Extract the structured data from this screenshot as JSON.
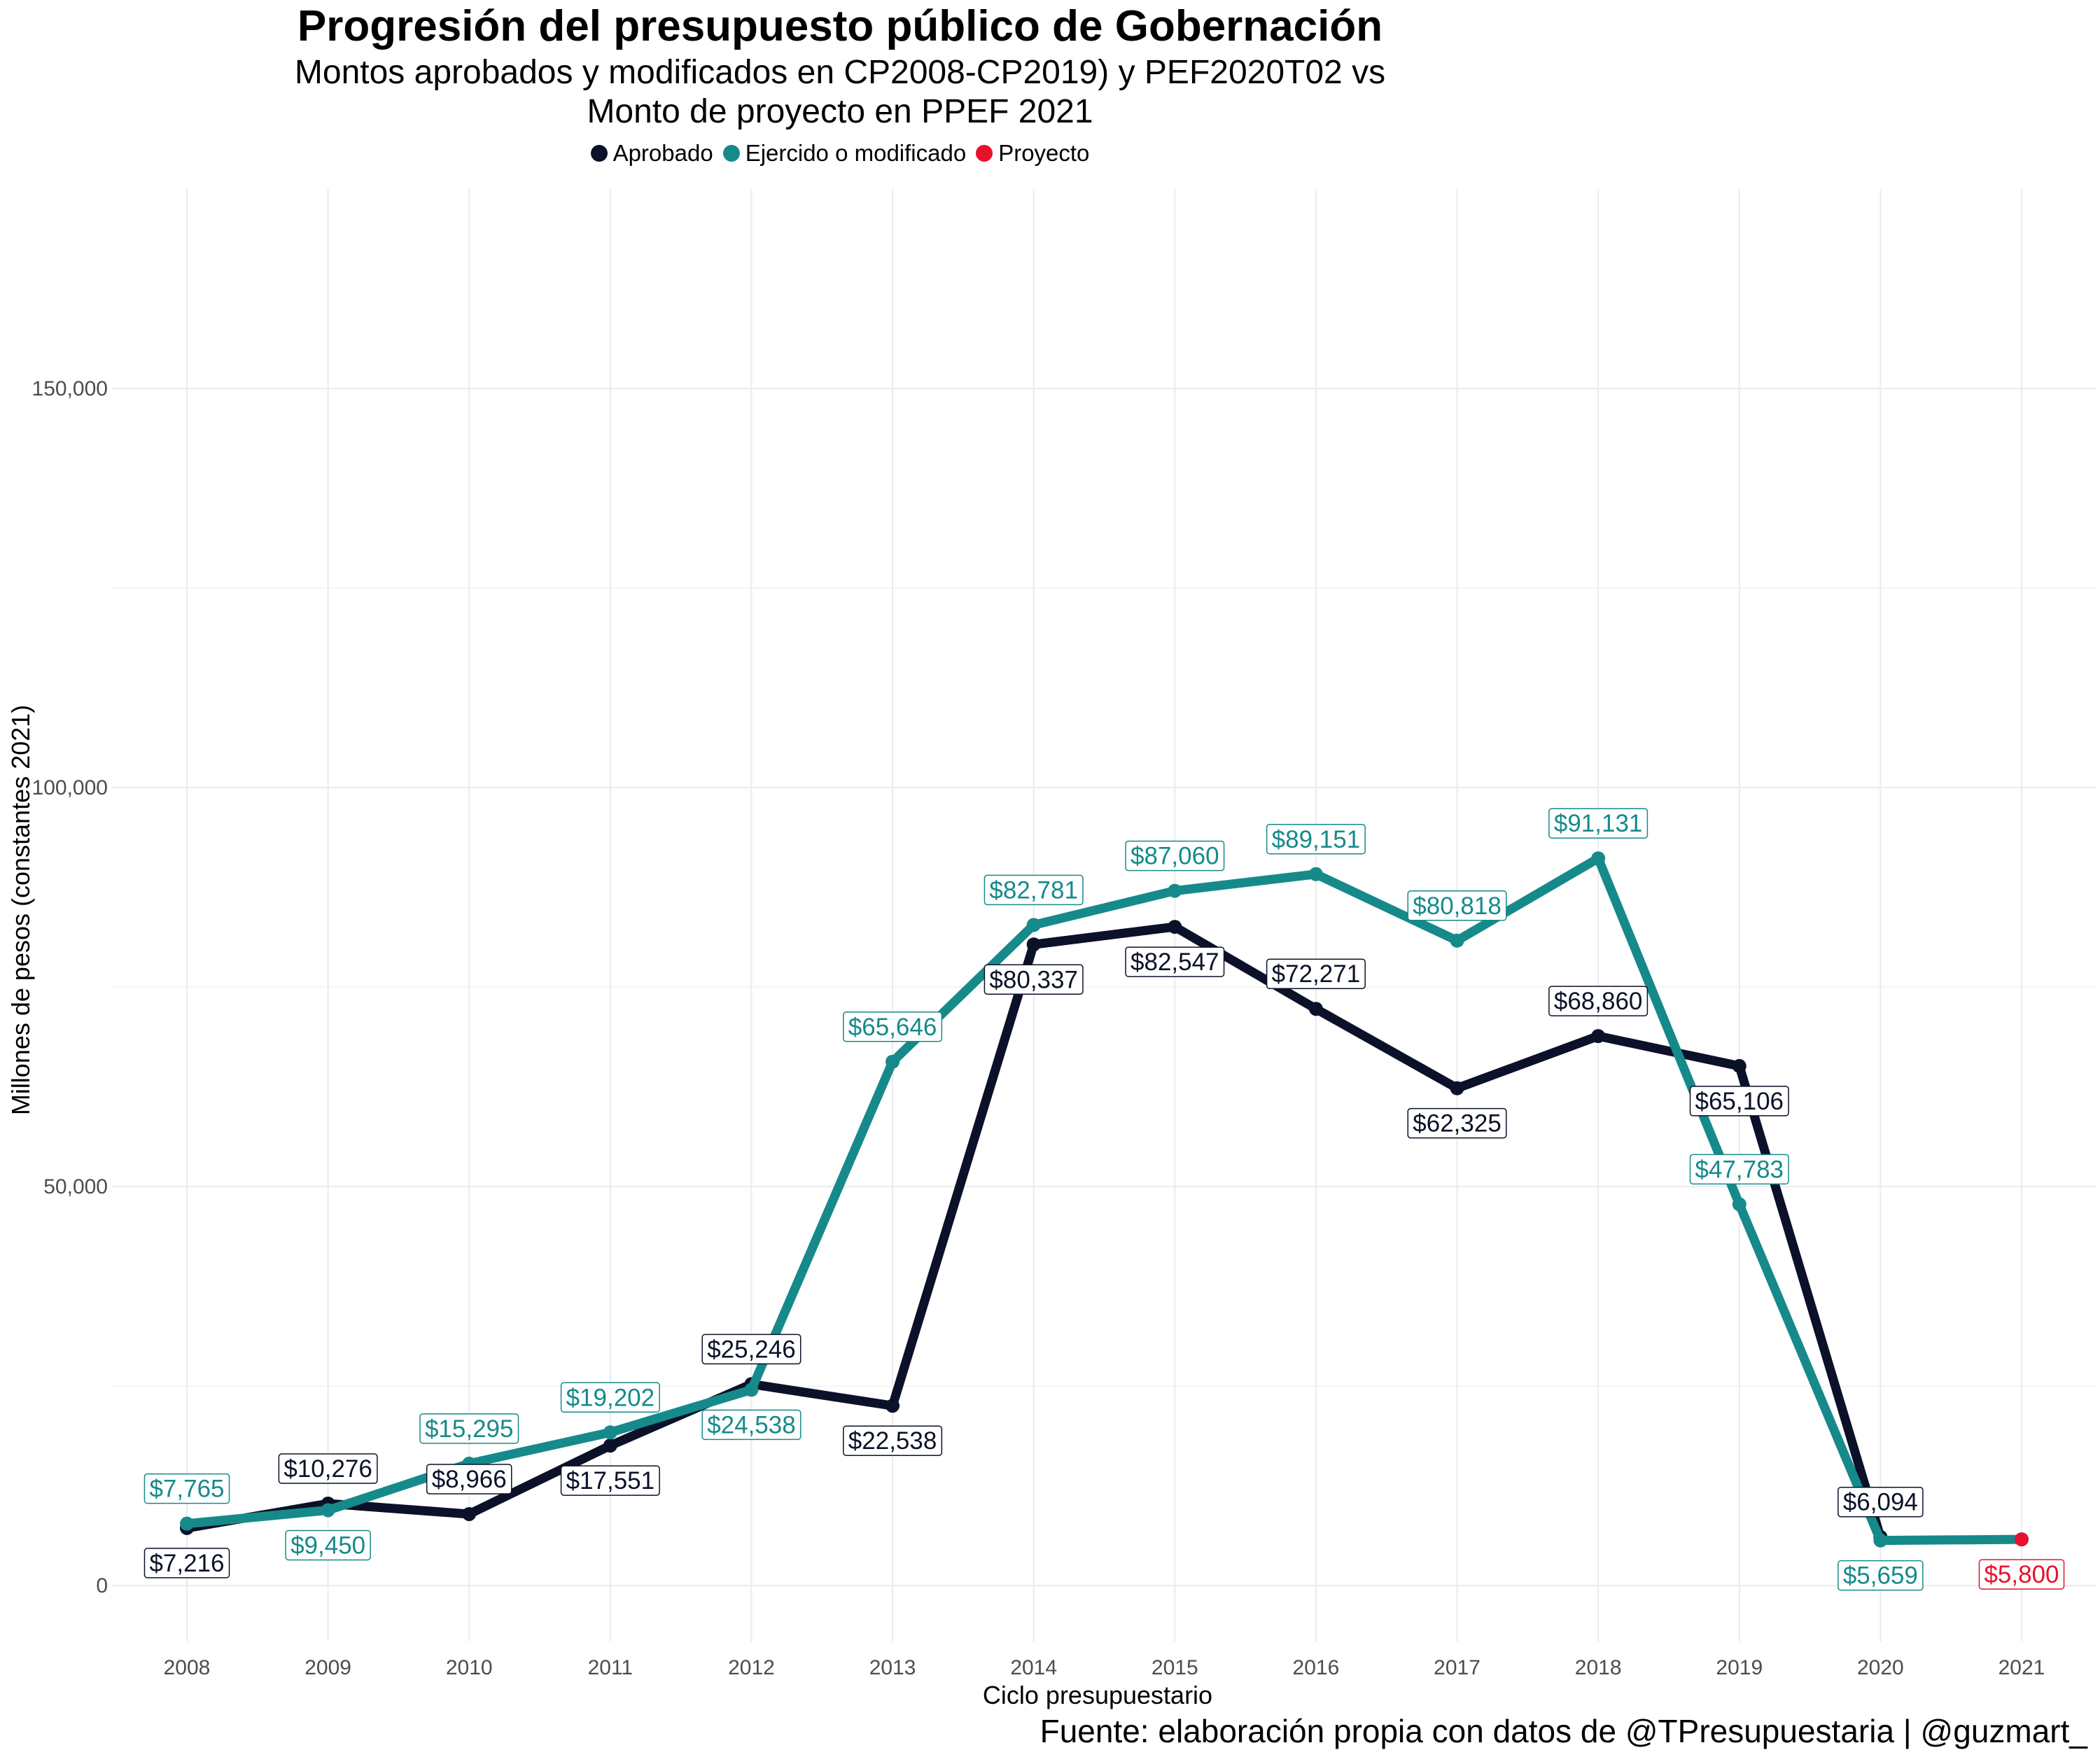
{
  "title": "Progresión del presupuesto público de Gobernación",
  "subtitle_line1": "Montos aprobados y modificados en CP2008-CP2019) y PEF2020T02 vs",
  "subtitle_line2": "Monto de proyecto en PPEF 2021",
  "caption": "Fuente: elaboración propia con datos de @TPresupuestaria | @guzmart_",
  "legend": [
    {
      "label": "Aprobado",
      "color": "#0b1128"
    },
    {
      "label": "Ejercido o modificado",
      "color": "#168a8a"
    },
    {
      "label": "Proyecto",
      "color": "#e8112d"
    }
  ],
  "chart_data": {
    "type": "line",
    "xlabel": "Ciclo presupuestario",
    "ylabel": "Millones de pesos (constantes 2021)",
    "x": [
      2008,
      2009,
      2010,
      2011,
      2012,
      2013,
      2014,
      2015,
      2016,
      2017,
      2018,
      2019,
      2020,
      2021
    ],
    "ylim": [
      -7000,
      175000
    ],
    "yticks": [
      0,
      50000,
      100000,
      150000
    ],
    "ytick_labels": [
      "0",
      "50,000",
      "100,000",
      "150,000"
    ],
    "grid": true,
    "legend_position": "top",
    "series": [
      {
        "name": "Aprobado",
        "color": "#0b1128",
        "x": [
          2008,
          2009,
          2010,
          2011,
          2012,
          2013,
          2014,
          2015,
          2016,
          2017,
          2018,
          2019,
          2020
        ],
        "values": [
          7216,
          10276,
          8966,
          17551,
          25246,
          22538,
          80337,
          82547,
          72271,
          62325,
          68860,
          65106,
          6094
        ],
        "labels": [
          "$7,216",
          "$10,276",
          "$8,966",
          "$17,551",
          "$25,246",
          "$22,538",
          "$80,337",
          "$82,547",
          "$72,271",
          "$62,325",
          "$68,860",
          "$65,106",
          "$6,094"
        ],
        "label_side": [
          "below",
          "above",
          "above",
          "below",
          "above",
          "below",
          "below",
          "below",
          "above",
          "below",
          "above",
          "below",
          "above"
        ]
      },
      {
        "name": "Ejercido o modificado",
        "color": "#168a8a",
        "x": [
          2008,
          2009,
          2010,
          2011,
          2012,
          2013,
          2014,
          2015,
          2016,
          2017,
          2018,
          2019,
          2020,
          2021
        ],
        "values": [
          7765,
          9450,
          15295,
          19202,
          24538,
          65646,
          82781,
          87060,
          89151,
          80818,
          91131,
          47783,
          5659,
          5800
        ],
        "labels": [
          "$7,765",
          "$9,450",
          "$15,295",
          "$19,202",
          "$24,538",
          "$65,646",
          "$82,781",
          "$87,060",
          "$89,151",
          "$80,818",
          "$91,131",
          "$47,783",
          "$5,659",
          ""
        ],
        "label_side": [
          "above",
          "below",
          "above",
          "above",
          "below",
          "above",
          "above",
          "above",
          "above",
          "above",
          "above",
          "above",
          "below",
          "none"
        ]
      },
      {
        "name": "Proyecto",
        "color": "#e8112d",
        "x": [
          2021
        ],
        "values": [
          5800
        ],
        "labels": [
          "$5,800"
        ],
        "label_side": [
          "below"
        ]
      }
    ]
  }
}
